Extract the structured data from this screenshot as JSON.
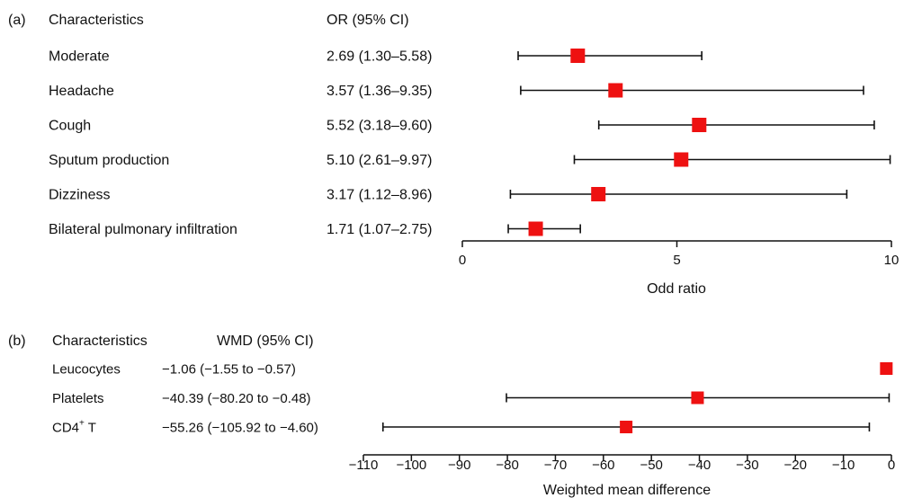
{
  "panel_a": {
    "label": "(a)",
    "header_characteristics": "Characteristics",
    "header_estimate": "OR (95% CI)"
  },
  "panel_b": {
    "label": "(b)",
    "header_characteristics": "Characteristics",
    "header_estimate": "WMD (95% CI)"
  },
  "chart_data": [
    {
      "type": "forest",
      "xlabel": "Odd ratio",
      "xlim": [
        0,
        10
      ],
      "xticks": [
        0,
        5,
        10
      ],
      "marker_color": "#ee1111",
      "rows": [
        {
          "label": "Moderate",
          "display": "2.69 (1.30–5.58)",
          "estimate": 2.69,
          "lower": 1.3,
          "upper": 5.58
        },
        {
          "label": "Headache",
          "display": "3.57 (1.36–9.35)",
          "estimate": 3.57,
          "lower": 1.36,
          "upper": 9.35
        },
        {
          "label": "Cough",
          "display": "5.52 (3.18–9.60)",
          "estimate": 5.52,
          "lower": 3.18,
          "upper": 9.6
        },
        {
          "label": "Sputum production",
          "display": "5.10 (2.61–9.97)",
          "estimate": 5.1,
          "lower": 2.61,
          "upper": 9.97
        },
        {
          "label": "Dizziness",
          "display": "3.17 (1.12–8.96)",
          "estimate": 3.17,
          "lower": 1.12,
          "upper": 8.96
        },
        {
          "label": "Bilateral pulmonary infiltration",
          "display": "1.71 (1.07–2.75)",
          "estimate": 1.71,
          "lower": 1.07,
          "upper": 2.75
        }
      ]
    },
    {
      "type": "forest",
      "xlabel": "Weighted mean difference",
      "xlim": [
        -110,
        0
      ],
      "xticks": [
        -110,
        -100,
        -90,
        -80,
        -70,
        -60,
        -50,
        -40,
        -30,
        -20,
        -10,
        0
      ],
      "marker_color": "#ee1111",
      "rows": [
        {
          "label": "Leucocytes",
          "display": "−1.06 (−1.55 to −0.57)",
          "estimate": -1.06,
          "lower": -1.55,
          "upper": -0.57
        },
        {
          "label": "Platelets",
          "display": "−40.39 (−80.20 to −0.48)",
          "estimate": -40.39,
          "lower": -80.2,
          "upper": -0.48
        },
        {
          "label": "CD4+ T",
          "display": "−55.26 (−105.92 to −4.60)",
          "estimate": -55.26,
          "lower": -105.92,
          "upper": -4.6
        }
      ]
    }
  ]
}
